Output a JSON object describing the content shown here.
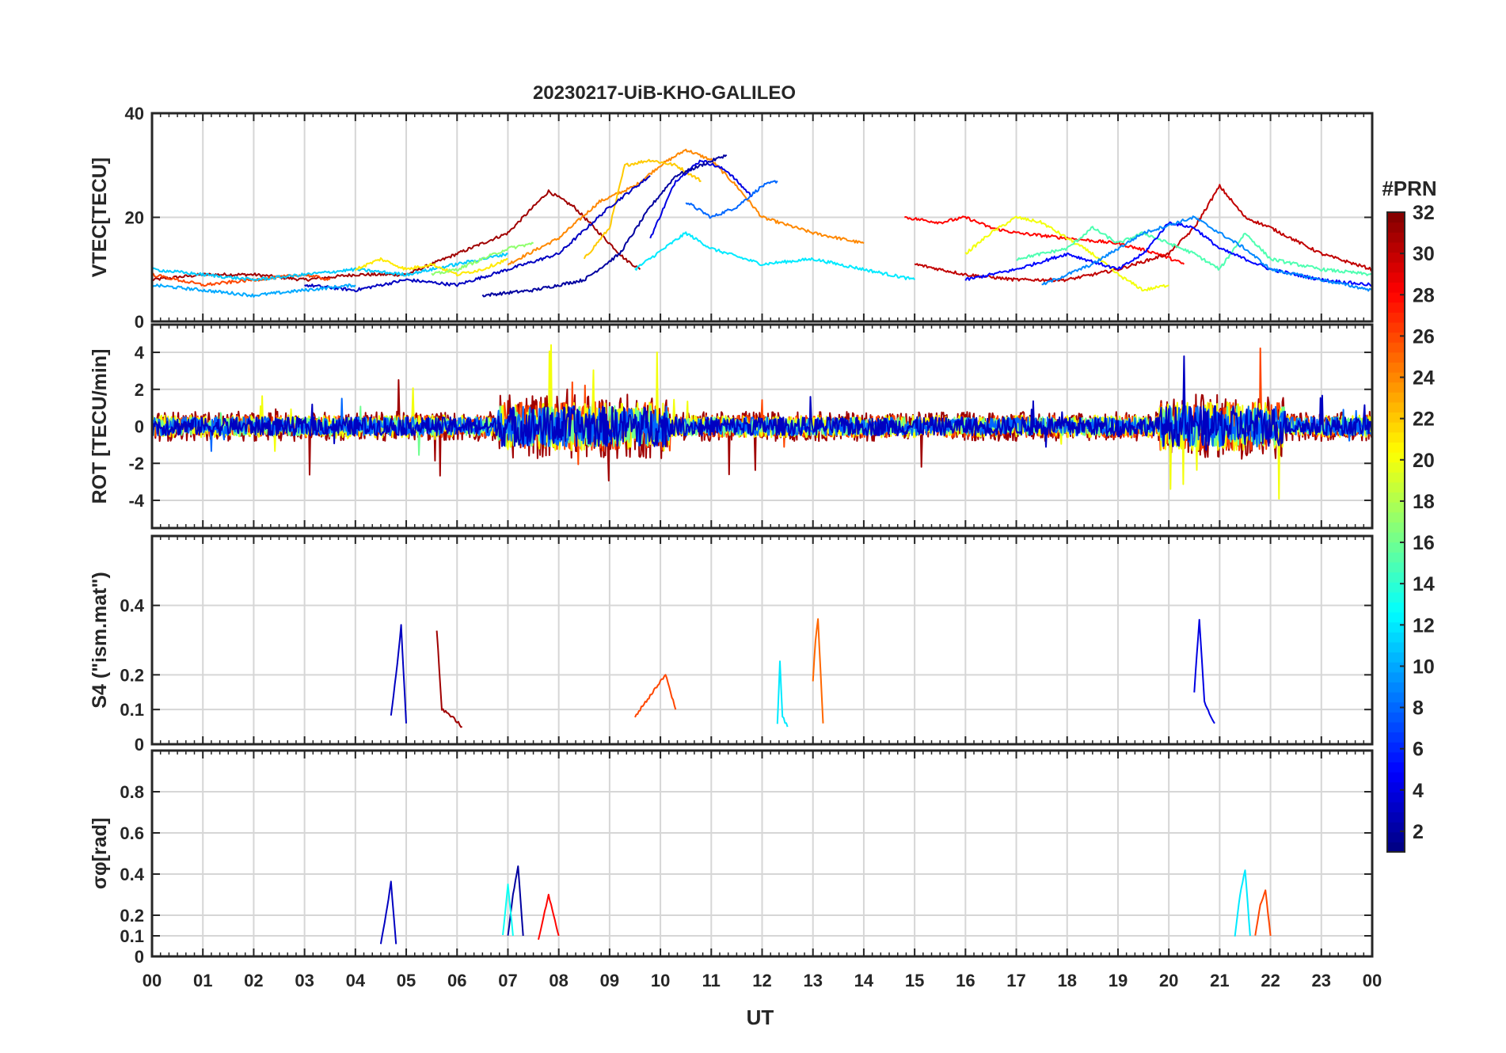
{
  "figure": {
    "title": "20230217-UiB-KHO-GALILEO",
    "xlabel": "UT",
    "x_ticks": [
      "00",
      "01",
      "02",
      "03",
      "04",
      "05",
      "06",
      "07",
      "08",
      "09",
      "10",
      "11",
      "12",
      "13",
      "14",
      "15",
      "16",
      "17",
      "18",
      "19",
      "20",
      "21",
      "22",
      "23",
      "00"
    ]
  },
  "colorbar": {
    "title": "#PRN",
    "ticks": [
      "2",
      "4",
      "6",
      "8",
      "10",
      "12",
      "14",
      "16",
      "18",
      "20",
      "22",
      "24",
      "26",
      "28",
      "30",
      "32"
    ],
    "range": [
      1,
      32
    ],
    "colormap": "jet"
  },
  "chart_data": [
    {
      "type": "line",
      "title": "20230217-UiB-KHO-GALILEO",
      "ylabel": "VTEC[TECU]",
      "ylim": [
        0,
        40
      ],
      "y_ticks": [
        "0",
        "20",
        "40"
      ],
      "xlim": [
        0,
        24
      ],
      "grid": true,
      "series": [
        {
          "prn": 31,
          "x": [
            0.0,
            1.0,
            2.0,
            3.0,
            4.0,
            5.0,
            6.0,
            7.0,
            7.3,
            7.8,
            8.3,
            8.8,
            9.3,
            9.6
          ],
          "y": [
            8,
            9,
            9,
            8,
            9,
            9,
            13,
            17,
            20,
            25,
            22,
            17,
            12,
            10
          ]
        },
        {
          "prn": 24,
          "x": [
            7.0,
            8.0,
            8.8,
            9.5,
            10.0,
            10.5,
            11.0,
            11.5,
            12.0,
            13.0,
            14.0
          ],
          "y": [
            11,
            16,
            23,
            26,
            30,
            33,
            31,
            26,
            20,
            17,
            15
          ]
        },
        {
          "prn": 22,
          "x": [
            8.5,
            9.0,
            9.3,
            9.8,
            10.3,
            10.8
          ],
          "y": [
            12,
            18,
            30,
            31,
            30,
            27
          ]
        },
        {
          "prn": 4,
          "x": [
            9.8,
            10.3,
            10.8,
            11.3,
            11.8
          ],
          "y": [
            16,
            27,
            31,
            29,
            24
          ]
        },
        {
          "prn": 8,
          "x": [
            10.5,
            11.0,
            11.5,
            12.0,
            12.3
          ],
          "y": [
            23,
            20,
            22,
            26,
            27
          ]
        },
        {
          "prn": 3,
          "x": [
            3.0,
            4.0,
            5.0,
            6.0,
            7.0,
            8.0,
            9.0,
            9.8
          ],
          "y": [
            7,
            6,
            8,
            7,
            10,
            13,
            22,
            28
          ]
        },
        {
          "prn": 2,
          "x": [
            6.5,
            7.5,
            8.5,
            9.2,
            9.8,
            10.3,
            10.8,
            11.3
          ],
          "y": [
            5,
            6,
            8,
            13,
            22,
            28,
            30,
            32
          ]
        },
        {
          "prn": 12,
          "x": [
            9.5,
            10.5,
            11.0,
            12.0,
            13.0,
            14.0,
            15.0
          ],
          "y": [
            10,
            17,
            14,
            11,
            12,
            10,
            8
          ]
        },
        {
          "prn": 10,
          "x": [
            0.0,
            1.0,
            2.0,
            3.0,
            4.0
          ],
          "y": [
            7,
            6,
            5,
            6,
            7
          ]
        },
        {
          "prn": 28,
          "x": [
            14.8,
            15.5,
            16.0,
            16.5,
            17.0,
            18.0,
            19.0,
            19.8,
            20.3
          ],
          "y": [
            20,
            19,
            20,
            18,
            17,
            16,
            15,
            13,
            11
          ]
        },
        {
          "prn": 30,
          "x": [
            15.0,
            16.0,
            17.0,
            18.0,
            19.0,
            20.0,
            20.5,
            21.0,
            21.5,
            22.0,
            23.0,
            24.0
          ],
          "y": [
            11,
            9,
            8,
            8,
            10,
            13,
            18,
            26,
            20,
            18,
            13,
            10
          ]
        },
        {
          "prn": 20,
          "x": [
            16.0,
            16.5,
            17.0,
            17.5,
            18.0,
            18.5,
            19.0,
            19.5,
            20.0
          ],
          "y": [
            13,
            17,
            20,
            19,
            16,
            13,
            9,
            6,
            7
          ]
        },
        {
          "prn": 15,
          "x": [
            17.0,
            18.0,
            18.5,
            19.0,
            19.5,
            20.0,
            20.5,
            21.0,
            21.5,
            22.0,
            23.0,
            24.0
          ],
          "y": [
            12,
            14,
            18,
            15,
            17,
            15,
            13,
            10,
            17,
            12,
            10,
            9
          ]
        },
        {
          "prn": 5,
          "x": [
            16.0,
            17.0,
            18.0,
            19.0,
            19.5,
            20.0,
            20.5,
            21.0,
            22.0,
            23.0,
            24.0
          ],
          "y": [
            8,
            10,
            13,
            10,
            13,
            19,
            18,
            14,
            10,
            8,
            7
          ]
        },
        {
          "prn": 9,
          "x": [
            17.5,
            18.5,
            19.5,
            20.5,
            21.0,
            21.5,
            22.0,
            22.5,
            23.0,
            24.0
          ],
          "y": [
            7,
            11,
            17,
            20,
            17,
            14,
            10,
            9,
            8,
            6
          ]
        },
        {
          "prn": 26,
          "x": [
            0.0,
            1.0,
            2.0,
            3.0,
            3.5
          ],
          "y": [
            9,
            7,
            8,
            9,
            8
          ]
        },
        {
          "prn": 11,
          "x": [
            0.0,
            1.0,
            2.0,
            3.0,
            4.0,
            5.0,
            6.0,
            7.0
          ],
          "y": [
            10,
            9,
            8,
            9,
            10,
            9,
            11,
            13
          ]
        },
        {
          "prn": 21,
          "x": [
            4.0,
            4.5,
            5.0,
            5.5,
            6.0,
            6.5,
            7.0
          ],
          "y": [
            10,
            12,
            10,
            11,
            9,
            10,
            12
          ]
        },
        {
          "prn": 17,
          "x": [
            5.5,
            6.0,
            6.5,
            7.0,
            7.5
          ],
          "y": [
            9,
            10,
            12,
            14,
            15
          ]
        }
      ]
    },
    {
      "type": "line",
      "ylabel": "ROT [TECU/min]",
      "ylim": [
        -5.5,
        5.5
      ],
      "y_ticks": [
        "-4",
        "-2",
        "0",
        "2",
        "4"
      ],
      "xlim": [
        0,
        24
      ],
      "grid": true,
      "series": [
        {
          "prn": 31,
          "noise_scale": 0.8,
          "start": 0.0,
          "end": 24.0
        },
        {
          "prn": 26,
          "noise_scale": 0.6,
          "start": 0.0,
          "end": 24.0
        },
        {
          "prn": 20,
          "noise_scale": 0.6,
          "start": 0.0,
          "end": 24.0
        },
        {
          "prn": 16,
          "noise_scale": 0.5,
          "start": 0.0,
          "end": 24.0
        },
        {
          "prn": 8,
          "noise_scale": 0.5,
          "start": 0.0,
          "end": 24.0
        },
        {
          "prn": 3,
          "noise_scale": 0.5,
          "start": 0.0,
          "end": 24.0
        }
      ]
    },
    {
      "type": "line",
      "ylabel": "S4 (\"ism.mat\")",
      "ylim": [
        0,
        0.6
      ],
      "y_ticks": [
        "0",
        "0.1",
        "0.2",
        "0.4"
      ],
      "xlim": [
        0,
        24
      ],
      "grid": true,
      "series": [
        {
          "prn": 3,
          "x": [
            4.7,
            4.8,
            4.9,
            5.0
          ],
          "y": [
            0.08,
            0.2,
            0.34,
            0.06
          ]
        },
        {
          "prn": 31,
          "x": [
            5.6,
            5.7,
            5.9,
            6.1
          ],
          "y": [
            0.33,
            0.1,
            0.08,
            0.05
          ]
        },
        {
          "prn": 25,
          "x": [
            13.0,
            13.05,
            13.1,
            13.2
          ],
          "y": [
            0.18,
            0.3,
            0.36,
            0.06
          ]
        },
        {
          "prn": 4,
          "x": [
            20.5,
            20.6,
            20.7,
            20.9
          ],
          "y": [
            0.15,
            0.36,
            0.12,
            0.06
          ]
        },
        {
          "prn": 12,
          "x": [
            12.3,
            12.35,
            12.4,
            12.5
          ],
          "y": [
            0.06,
            0.24,
            0.08,
            0.05
          ]
        },
        {
          "prn": 26,
          "x": [
            9.5,
            9.8,
            10.1,
            10.3
          ],
          "y": [
            0.08,
            0.14,
            0.2,
            0.1
          ]
        }
      ]
    },
    {
      "type": "line",
      "ylabel": "σφ[rad]",
      "ylim": [
        0,
        1.0
      ],
      "y_ticks": [
        "0",
        "0.1",
        "0.2",
        "0.4",
        "0.6",
        "0.8"
      ],
      "xlim": [
        0,
        24
      ],
      "grid": true,
      "series": [
        {
          "prn": 2,
          "x": [
            7.0,
            7.1,
            7.2,
            7.3
          ],
          "y": [
            0.1,
            0.3,
            0.44,
            0.1
          ]
        },
        {
          "prn": 3,
          "x": [
            4.5,
            4.6,
            4.7,
            4.8
          ],
          "y": [
            0.06,
            0.2,
            0.36,
            0.06
          ]
        },
        {
          "prn": 12,
          "x": [
            21.3,
            21.4,
            21.5,
            21.6
          ],
          "y": [
            0.1,
            0.3,
            0.42,
            0.1
          ]
        },
        {
          "prn": 26,
          "x": [
            21.7,
            21.8,
            21.9,
            22.0
          ],
          "y": [
            0.1,
            0.25,
            0.32,
            0.1
          ]
        },
        {
          "prn": 13,
          "x": [
            6.9,
            7.0,
            7.1
          ],
          "y": [
            0.1,
            0.35,
            0.1
          ]
        },
        {
          "prn": 28,
          "x": [
            7.6,
            7.8,
            8.0
          ],
          "y": [
            0.08,
            0.3,
            0.1
          ]
        }
      ]
    }
  ]
}
